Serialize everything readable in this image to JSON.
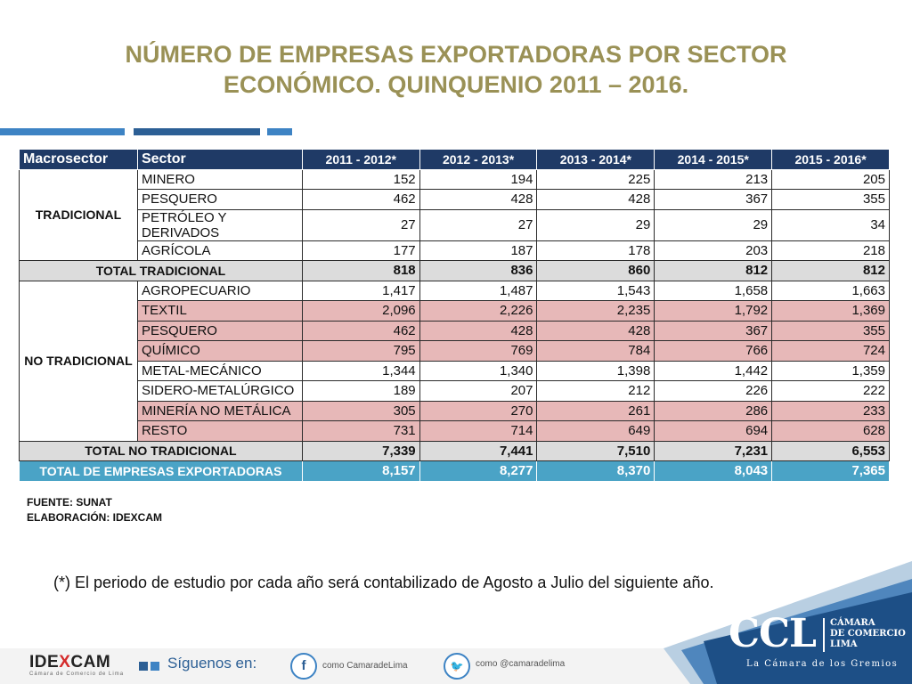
{
  "title": {
    "line1": "NÚMERO DE EMPRESAS EXPORTADORAS POR SECTOR",
    "line2": "ECONÓMICO. QUINQUENIO 2011 – 2016."
  },
  "table": {
    "headers": [
      "Macrosector",
      "Sector",
      "2011 - 2012*",
      "2012 - 2013*",
      "2013 - 2014*",
      "2014 - 2015*",
      "2015 - 2016*"
    ],
    "tradicional": {
      "label": "TRADICIONAL",
      "rows": [
        {
          "sector": "MINERO",
          "values": [
            "152",
            "194",
            "225",
            "213",
            "205"
          ]
        },
        {
          "sector": "PESQUERO",
          "values": [
            "462",
            "428",
            "428",
            "367",
            "355"
          ]
        },
        {
          "sector": "PETRÓLEO Y DERIVADOS",
          "values": [
            "27",
            "27",
            "29",
            "29",
            "34"
          ]
        },
        {
          "sector": "AGRÍCOLA",
          "values": [
            "177",
            "187",
            "178",
            "203",
            "218"
          ]
        }
      ],
      "total_label": "TOTAL TRADICIONAL",
      "total": [
        "818",
        "836",
        "860",
        "812",
        "812"
      ]
    },
    "no_tradicional": {
      "label": "NO TRADICIONAL",
      "rows": [
        {
          "sector": "AGROPECUARIO",
          "values": [
            "1,417",
            "1,487",
            "1,543",
            "1,658",
            "1,663"
          ]
        },
        {
          "sector": "TEXTIL",
          "values": [
            "2,096",
            "2,226",
            "2,235",
            "1,792",
            "1,369"
          ]
        },
        {
          "sector": "PESQUERO",
          "values": [
            "462",
            "428",
            "428",
            "367",
            "355"
          ]
        },
        {
          "sector": "QUÍMICO",
          "values": [
            "795",
            "769",
            "784",
            "766",
            "724"
          ]
        },
        {
          "sector": "METAL-MECÁNICO",
          "values": [
            "1,344",
            "1,340",
            "1,398",
            "1,442",
            "1,359"
          ]
        },
        {
          "sector": "SIDERO-METALÚRGICO",
          "values": [
            "189",
            "207",
            "212",
            "226",
            "222"
          ]
        },
        {
          "sector": "MINERÍA NO METÁLICA",
          "values": [
            "305",
            "270",
            "261",
            "286",
            "233"
          ]
        },
        {
          "sector": "RESTO",
          "values": [
            "731",
            "714",
            "649",
            "694",
            "628"
          ]
        }
      ],
      "total_label": "TOTAL NO TRADICIONAL",
      "total": [
        "7,339",
        "7,441",
        "7,510",
        "7,231",
        "6,553"
      ]
    },
    "grand_total_label": "TOTAL DE EMPRESAS EXPORTADORAS",
    "grand_total": [
      "8,157",
      "8,277",
      "8,370",
      "8,043",
      "7,365"
    ]
  },
  "source": {
    "fuente": "FUENTE: SUNAT",
    "elaboracion": "ELABORACIÓN: IDEXCAM"
  },
  "note": "(*) El periodo de estudio por cada año será contabilizado de Agosto a Julio del siguiente año.",
  "footer": {
    "idexcam_prefix": "IDE",
    "idexcam_x": "X",
    "idexcam_suffix": "CAM",
    "idexcam_sub": "Cámara de Comercio de Lima",
    "follow": "Síguenos en:",
    "facebook_icon_glyph": "f",
    "facebook_text": "como CamaradeLima",
    "twitter_icon_glyph": "🐦",
    "twitter_text": "como @camaradelima",
    "ccl_logo": "CCL",
    "ccl_name_line1": "CÁMARA",
    "ccl_name_line2": "DE COMERCIO",
    "ccl_name_line3": "LIMA",
    "ccl_slogan": "La Cámara de los Gremios"
  },
  "colors": {
    "title": "#9a9156",
    "header_bg": "#1f3a66",
    "highlight_row": "#e7b8b8",
    "total_row": "#dcdcdc",
    "grand_total_row": "#4aa3c6",
    "accent_blue": "#3d83c4"
  }
}
